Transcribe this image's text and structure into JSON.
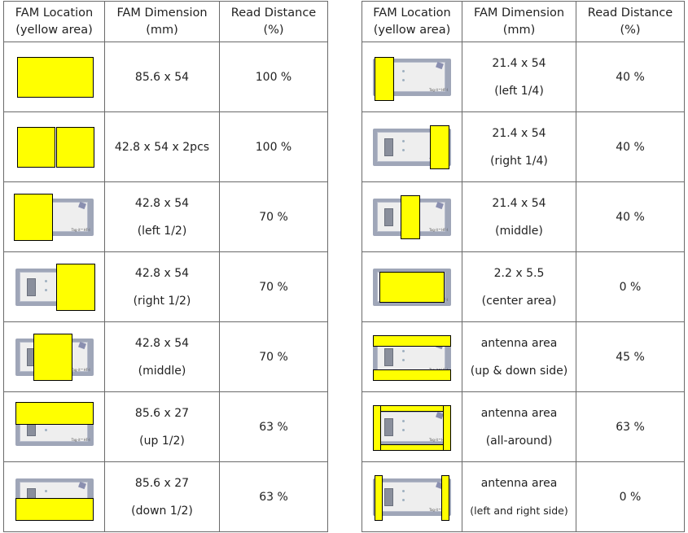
{
  "headers": {
    "location": "FAM Location\n(yellow area)",
    "dimension": "FAM Dimension\n(mm)",
    "distance": "Read Distance\n(%)"
  },
  "card_label": "Tag-it™HF-I",
  "colors": {
    "fam_yellow": "#ffff00",
    "card": "#9fa6b8"
  },
  "left_rows": [
    {
      "dim1": "85.6 x 54",
      "dim2": "",
      "distance": "100 %"
    },
    {
      "dim1": "42.8 x 54 x 2pcs",
      "dim2": "",
      "distance": "100 %"
    },
    {
      "dim1": "42.8 x 54",
      "dim2": "(left 1/2)",
      "distance": "70 %"
    },
    {
      "dim1": "42.8 x 54",
      "dim2": "(right 1/2)",
      "distance": "70 %"
    },
    {
      "dim1": "42.8 x 54",
      "dim2": "(middle)",
      "distance": "70 %"
    },
    {
      "dim1": "85.6 x 27",
      "dim2": "(up 1/2)",
      "distance": "63 %"
    },
    {
      "dim1": "85.6 x 27",
      "dim2": "(down 1/2)",
      "distance": "63 %"
    }
  ],
  "right_rows": [
    {
      "dim1": "21.4 x 54",
      "dim2": "(left 1/4)",
      "distance": "40 %"
    },
    {
      "dim1": "21.4 x 54",
      "dim2": "(right 1/4)",
      "distance": "40 %"
    },
    {
      "dim1": "21.4 x 54",
      "dim2": "(middle)",
      "distance": "40 %"
    },
    {
      "dim1": "2.2 x 5.5",
      "dim2": "(center area)",
      "distance": "0 %"
    },
    {
      "dim1": "antenna area",
      "dim2": "(up & down side)",
      "distance": "45 %"
    },
    {
      "dim1": "antenna area",
      "dim2": "(all-around)",
      "distance": "63 %"
    },
    {
      "dim1": "antenna area",
      "dim2": "(left and right side)",
      "distance": "0 %"
    }
  ]
}
